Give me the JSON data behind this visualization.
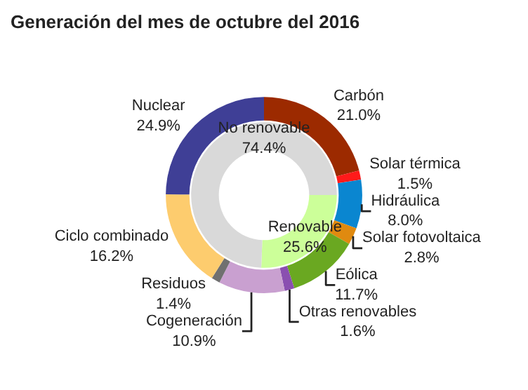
{
  "chart_data": [
    {
      "type": "donut",
      "title": "Generación del mes de octubre del 2016",
      "categories": [
        "Carbón",
        "Solar térmica",
        "Hidráulica",
        "Solar fotovoltaica",
        "Eólica",
        "Otras renovables",
        "Cogeneración",
        "Residuos",
        "Ciclo combinado",
        "Nuclear"
      ],
      "values": [
        21.0,
        1.5,
        8.0,
        2.8,
        11.7,
        1.6,
        10.9,
        1.4,
        16.2,
        24.9
      ],
      "value_labels": [
        "21.0%",
        "1.5%",
        "8.0%",
        "2.8%",
        "11.7%",
        "1.6%",
        "10.9%",
        "1.4%",
        "16.2%",
        "24.9%"
      ],
      "colors": [
        "#9c2a00",
        "#ff1a1a",
        "#0a86d0",
        "#e08a10",
        "#6aa821",
        "#8a4fb0",
        "#c9a0d0",
        "#707070",
        "#fdcc6e",
        "#3f3f96"
      ]
    },
    {
      "type": "donut",
      "categories": [
        "Renovable",
        "No renovable"
      ],
      "values": [
        25.6,
        74.4
      ],
      "value_labels": [
        "25.6%",
        "74.4%"
      ],
      "colors": [
        "#ccff99",
        "#d9d9d9"
      ]
    }
  ]
}
